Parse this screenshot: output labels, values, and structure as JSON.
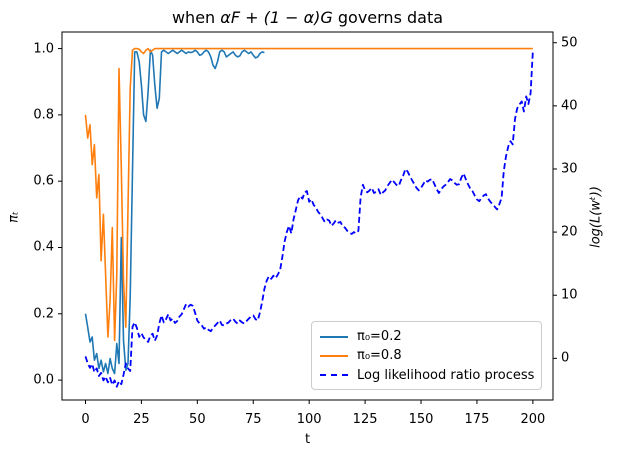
{
  "figure": {
    "title_prefix": "when ",
    "title_math": "αF + (1 − α)G",
    "title_suffix": " governs data",
    "background_color": "#ffffff",
    "axis_color": "#000000"
  },
  "chart_data": {
    "type": "line",
    "title": "when αF + (1 − α)G governs data",
    "xlabel": "t",
    "ylabel_left": "πₜ",
    "ylabel_right": "log(L(wᵗ))",
    "grid": false,
    "legend_position": "inside lower-right",
    "x_tick_labels": [
      "0",
      "25",
      "50",
      "75",
      "100",
      "125",
      "150",
      "175",
      "200"
    ],
    "y_tick_labels_left": [
      "0.0",
      "0.2",
      "0.4",
      "0.6",
      "0.8",
      "1.0"
    ],
    "y_tick_labels_right": [
      "0",
      "10",
      "20",
      "30",
      "40",
      "50"
    ],
    "xlim": [
      -10.5,
      209
    ],
    "ylim_left": [
      -0.06,
      1.05
    ],
    "ylim_right": [
      -6.6,
      51.7
    ],
    "series": [
      {
        "name": "π₀=0.2",
        "color": "#1f77b4",
        "line_style": "solid",
        "axis": "left",
        "x_start": 0,
        "x_step": 1,
        "values": [
          0.2,
          0.16,
          0.115,
          0.13,
          0.06,
          0.08,
          0.035,
          0.06,
          0.025,
          0.05,
          0.02,
          0.065,
          0.035,
          0.02,
          0.11,
          0.05,
          0.43,
          0.12,
          0.03,
          0.05,
          0.25,
          0.63,
          0.99,
          0.99,
          0.96,
          0.89,
          0.8,
          0.78,
          0.87,
          0.995,
          0.98,
          0.89,
          0.82,
          0.85,
          0.99,
          0.995,
          0.99,
          0.985,
          0.99,
          0.995,
          0.99,
          0.985,
          0.99,
          0.995,
          0.99,
          0.985,
          0.99,
          0.988,
          0.99,
          0.995,
          0.99,
          0.98,
          0.982,
          0.99,
          0.995,
          0.99,
          0.975,
          0.95,
          0.94,
          0.96,
          0.99,
          0.995,
          0.99,
          0.975,
          0.98,
          0.985,
          0.99,
          0.98,
          0.975,
          0.978,
          0.99,
          0.995,
          0.99,
          0.985,
          0.99,
          0.98,
          0.972,
          0.975,
          0.985,
          0.99,
          0.988
        ]
      },
      {
        "name": "π₀=0.8",
        "color": "#ff7f0e",
        "line_style": "solid",
        "axis": "left",
        "x_start": 0,
        "x_step": 1,
        "repeat_last_to_x": 200,
        "values": [
          0.8,
          0.73,
          0.77,
          0.65,
          0.71,
          0.55,
          0.62,
          0.36,
          0.5,
          0.32,
          0.13,
          0.24,
          0.46,
          0.12,
          0.32,
          0.94,
          0.64,
          0.3,
          0.16,
          0.52,
          0.88,
          0.995,
          1,
          1,
          0.998,
          0.99,
          0.985,
          0.995,
          1,
          0.99,
          0.995,
          1
        ]
      },
      {
        "name": "Log likelihood ratio process",
        "color": "#0000ff",
        "line_style": "dashed",
        "axis": "right",
        "x_start": 0,
        "x_step": 1,
        "values": [
          0.3,
          -0.8,
          -1.5,
          -0.9,
          -2.2,
          -1.6,
          -2.8,
          -2.3,
          -3.5,
          -2.9,
          -3.8,
          -3.1,
          -4.2,
          -3.5,
          -4.5,
          -3.6,
          -4.1,
          -2.6,
          -0.8,
          -1.6,
          -2,
          5,
          5.7,
          4.8,
          3.4,
          4,
          3.3,
          2.9,
          2.6,
          3.6,
          3.9,
          2.8,
          3.6,
          5.5,
          6.8,
          5.7,
          6.2,
          7,
          6,
          6.3,
          5.6,
          5.9,
          6.6,
          7,
          7.8,
          8.6,
          8.2,
          8.5,
          8.3,
          7.2,
          6,
          5.5,
          5.2,
          4.7,
          4.9,
          4.5,
          4.3,
          4.8,
          5.2,
          5.6,
          6,
          5.3,
          5.2,
          5.5,
          5.7,
          6.1,
          6.3,
          5.8,
          5.5,
          6,
          5.7,
          5.5,
          5.9,
          6.3,
          6.6,
          6.8,
          6.2,
          6,
          7.3,
          9,
          11,
          12.3,
          13,
          12.6,
          13.1,
          12.7,
          13.3,
          14,
          16,
          18.5,
          20,
          21,
          19.8,
          22,
          23.5,
          25,
          25.7,
          25.3,
          26.3,
          26.5,
          24.8,
          25.2,
          24.3,
          23.9,
          23.2,
          22.8,
          22.2,
          21.6,
          22,
          21.8,
          21,
          21.4,
          21.9,
          21.5,
          21.6,
          20.9,
          20.7,
          20.2,
          19.9,
          19.7,
          20,
          19.8,
          20.2,
          25.5,
          27.5,
          26.6,
          26.3,
          26.6,
          27,
          26.2,
          26.4,
          26.8,
          25.9,
          26.3,
          26.6,
          27.3,
          27.8,
          28.3,
          27.9,
          27.5,
          27.3,
          28.2,
          28.9,
          30,
          29.6,
          28.9,
          28.2,
          27.6,
          27,
          26.6,
          27,
          27.6,
          28.2,
          28,
          28.3,
          28.4,
          27.6,
          26.8,
          26.2,
          26.8,
          27.2,
          27.5,
          27.9,
          28.4,
          28.2,
          27.8,
          27.5,
          27.6,
          28.6,
          29.3,
          28.4,
          27.6,
          26.9,
          26.5,
          25.8,
          25.2,
          24.9,
          25.4,
          25.8,
          26,
          25.3,
          24.8,
          24.4,
          24,
          23.6,
          24.4,
          25.4,
          29.7,
          32,
          33.6,
          34.4,
          33.9,
          37.9,
          39.6,
          40.2,
          40.7,
          39.1,
          41.5,
          40.3,
          42,
          48.8
        ]
      }
    ]
  }
}
